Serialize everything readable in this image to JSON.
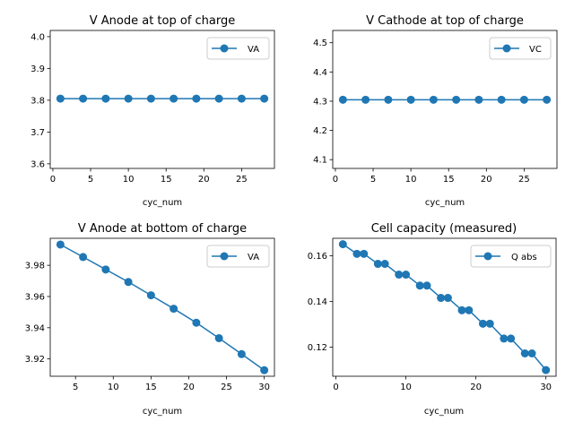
{
  "colors": {
    "series": "#1f77b4",
    "axis": "#000000",
    "legend_border": "#cccccc",
    "background": "#ffffff"
  },
  "chart_data": [
    {
      "type": "line",
      "title": "V Anode at top of charge",
      "xlabel": "cyc_num",
      "ylabel": "",
      "xlim": [
        -0.35,
        29.35
      ],
      "ylim": [
        3.5855,
        4.0195
      ],
      "xticks": [
        0,
        5,
        10,
        15,
        20,
        25
      ],
      "xtick_labels": [
        "0",
        "5",
        "10",
        "15",
        "20",
        "25"
      ],
      "yticks": [
        3.6,
        3.7,
        3.8,
        3.9,
        4.0
      ],
      "ytick_labels": [
        "3.6",
        "3.7",
        "3.8",
        "3.9",
        "4.0"
      ],
      "legend": "upper right",
      "grid": false,
      "series": [
        {
          "name": "VA",
          "x": [
            1,
            4,
            7,
            10,
            13,
            16,
            19,
            22,
            25,
            28
          ],
          "y": [
            3.805,
            3.805,
            3.805,
            3.805,
            3.805,
            3.805,
            3.805,
            3.805,
            3.805,
            3.805
          ]
        }
      ]
    },
    {
      "type": "line",
      "title": "V Cathode at top of charge",
      "xlabel": "cyc_num",
      "ylabel": "",
      "xlim": [
        -0.35,
        29.35
      ],
      "ylim": [
        4.07,
        4.542
      ],
      "xticks": [
        0,
        5,
        10,
        15,
        20,
        25
      ],
      "xtick_labels": [
        "0",
        "5",
        "10",
        "15",
        "20",
        "25"
      ],
      "yticks": [
        4.1,
        4.2,
        4.3,
        4.4,
        4.5
      ],
      "ytick_labels": [
        "4.1",
        "4.2",
        "4.3",
        "4.4",
        "4.5"
      ],
      "legend": "upper right",
      "grid": false,
      "series": [
        {
          "name": "VC",
          "x": [
            1,
            4,
            7,
            10,
            13,
            16,
            19,
            22,
            25,
            28
          ],
          "y": [
            4.305,
            4.305,
            4.305,
            4.305,
            4.305,
            4.305,
            4.305,
            4.305,
            4.305,
            4.305
          ]
        }
      ]
    },
    {
      "type": "line",
      "title": "V Anode at bottom of charge",
      "xlabel": "cyc_num",
      "ylabel": "",
      "xlim": [
        1.65,
        31.35
      ],
      "ylim": [
        3.9089,
        3.9973
      ],
      "xticks": [
        5,
        10,
        15,
        20,
        25,
        30
      ],
      "xtick_labels": [
        "5",
        "10",
        "15",
        "20",
        "25",
        "30"
      ],
      "yticks": [
        3.92,
        3.94,
        3.96,
        3.98
      ],
      "ytick_labels": [
        "3.92",
        "3.94",
        "3.96",
        "3.98"
      ],
      "legend": "upper right",
      "grid": false,
      "series": [
        {
          "name": "VA",
          "x": [
            3,
            6,
            9,
            12,
            15,
            18,
            21,
            24,
            27,
            30
          ],
          "y": [
            3.9933,
            3.9853,
            3.9773,
            3.9693,
            3.9608,
            3.9522,
            3.9432,
            3.9333,
            3.9231,
            3.9128
          ]
        }
      ]
    },
    {
      "type": "line",
      "title": "Cell capacity (measured)",
      "xlabel": "cyc_num",
      "ylabel": "",
      "xlim": [
        -0.45,
        31.45
      ],
      "ylim": [
        0.1073,
        0.1677
      ],
      "xticks": [
        0,
        10,
        20,
        30
      ],
      "xtick_labels": [
        "0",
        "10",
        "20",
        "30"
      ],
      "yticks": [
        0.12,
        0.14,
        0.16
      ],
      "ytick_labels": [
        "0.12",
        "0.14",
        "0.16"
      ],
      "legend": "upper right",
      "grid": false,
      "series": [
        {
          "name": "Q abs",
          "x": [
            1,
            3,
            4,
            6,
            7,
            9,
            10,
            12,
            13,
            15,
            16,
            18,
            19,
            21,
            22,
            24,
            25,
            27,
            28,
            30
          ],
          "y": [
            0.1651,
            0.1609,
            0.1609,
            0.1565,
            0.1565,
            0.1518,
            0.1518,
            0.147,
            0.147,
            0.1416,
            0.1416,
            0.1362,
            0.1362,
            0.1303,
            0.1303,
            0.1238,
            0.1238,
            0.1173,
            0.1173,
            0.11
          ]
        }
      ]
    }
  ]
}
